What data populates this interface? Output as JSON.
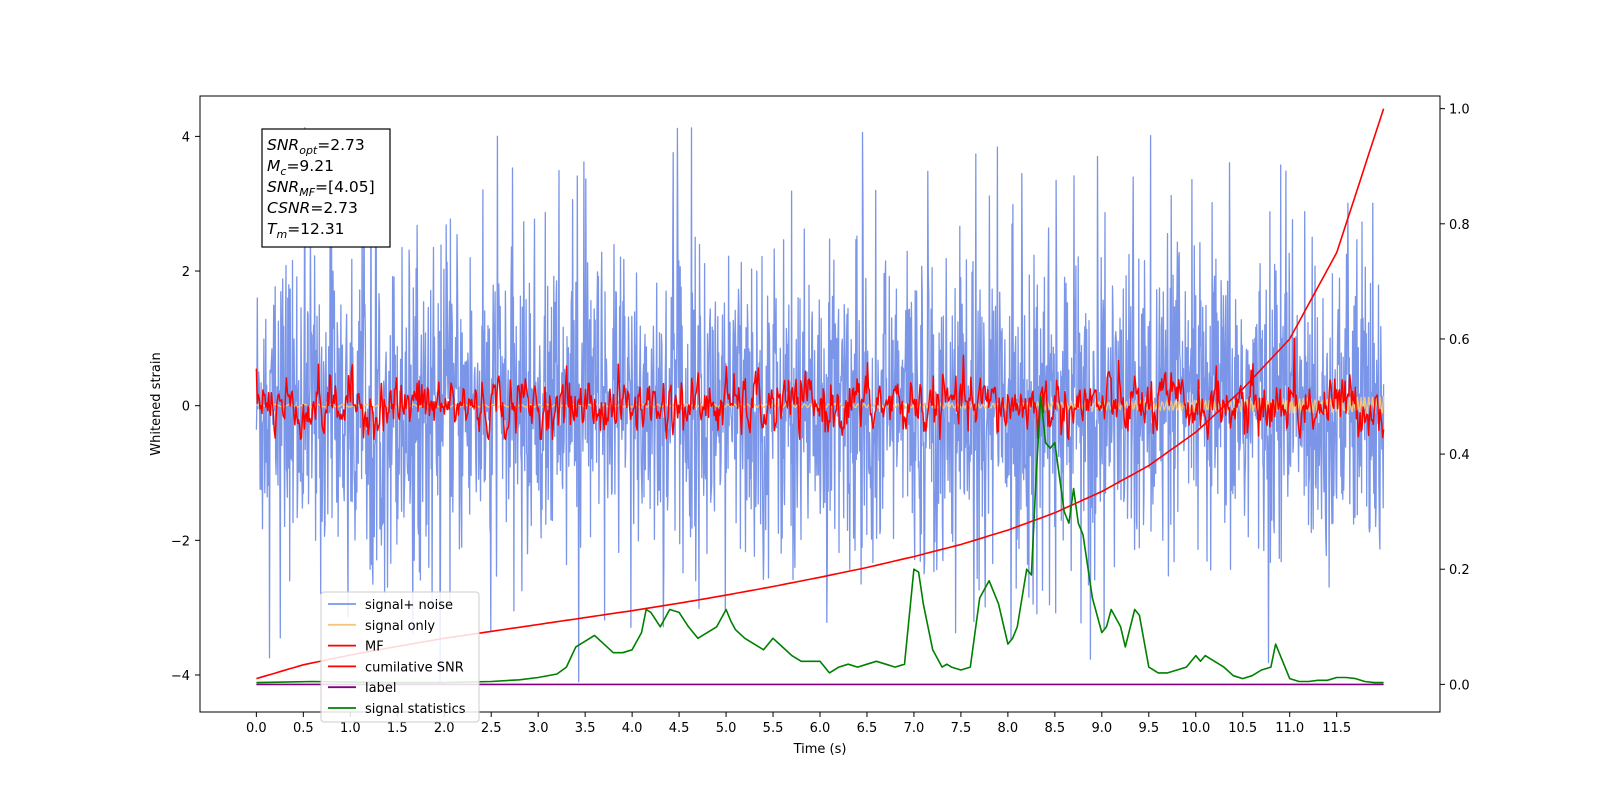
{
  "chart_data": {
    "type": "line",
    "xlabel": "Time (s)",
    "ylabel": "Whitened strain",
    "xlim": [
      -0.6,
      12.6
    ],
    "ylim": [
      -4.55,
      4.6
    ],
    "y2lim": [
      -0.048,
      1.022
    ],
    "xticks": [
      0.0,
      0.5,
      1.0,
      1.5,
      2.0,
      2.5,
      3.0,
      3.5,
      4.0,
      4.5,
      5.0,
      5.5,
      6.0,
      6.5,
      7.0,
      7.5,
      8.0,
      8.5,
      9.0,
      9.5,
      10.0,
      10.5,
      11.0,
      11.5
    ],
    "xtick_labels": [
      "0.0",
      "0.5",
      "1.0",
      "1.5",
      "2.0",
      "2.5",
      "3.0",
      "3.5",
      "4.0",
      "4.5",
      "5.0",
      "5.5",
      "6.0",
      "6.5",
      "7.0",
      "7.5",
      "8.0",
      "8.5",
      "9.0",
      "9.5",
      "10.0",
      "10.5",
      "11.0",
      "11.5"
    ],
    "yticks": [
      -4,
      -2,
      0,
      2,
      4
    ],
    "ytick_labels": [
      "−4",
      "−2",
      "0",
      "2",
      "4"
    ],
    "y2ticks": [
      0.0,
      0.2,
      0.4,
      0.6,
      0.8,
      1.0
    ],
    "y2tick_labels": [
      "0.0",
      "0.2",
      "0.4",
      "0.6",
      "0.8",
      "1.0"
    ],
    "time_span": [
      0.0,
      12.0
    ],
    "legend_position": "lower-left",
    "info_box": {
      "lines": [
        {
          "name": "SNR",
          "sub": "opt",
          "value": "=2.73"
        },
        {
          "name": "M",
          "sub": "c",
          "value": "=9.21"
        },
        {
          "name": "SNR",
          "sub": "MF",
          "value": "=[4.05]"
        },
        {
          "name": "CSNR",
          "sub": "",
          "value": "=2.73"
        },
        {
          "name": "T",
          "sub": "m",
          "value": "=12.31"
        }
      ]
    },
    "series": [
      {
        "name": "signal+ noise",
        "axis": "left",
        "color": "#7b96e8",
        "envelope": {
          "upper_typical": 2.2,
          "lower_typical": -2.6,
          "max": 4.15,
          "min": -4.1
        }
      },
      {
        "name": "signal only",
        "axis": "left",
        "color": "#f5c77e",
        "start_amplitude": 0.02,
        "end_amplitude": 0.15
      },
      {
        "name": "MF",
        "axis": "left",
        "color": "#ff0000",
        "envelope": {
          "upper_typical": 0.6,
          "lower_typical": -0.5,
          "max": 0.75,
          "min": -0.5
        },
        "start_value": 0.55,
        "spike": {
          "x": 11.05,
          "y": 1.0
        }
      },
      {
        "name": "cumilative SNR",
        "axis": "right",
        "color": "#ff0000",
        "x": [
          0.0,
          0.5,
          1.0,
          1.5,
          2.0,
          2.5,
          3.0,
          3.5,
          4.0,
          4.5,
          5.0,
          5.5,
          6.0,
          6.5,
          7.0,
          7.5,
          8.0,
          8.5,
          9.0,
          9.5,
          10.0,
          10.5,
          11.0,
          11.5,
          12.0
        ],
        "values": [
          0.01,
          0.034,
          0.051,
          0.066,
          0.08,
          0.092,
          0.104,
          0.116,
          0.128,
          0.141,
          0.155,
          0.17,
          0.186,
          0.203,
          0.222,
          0.243,
          0.268,
          0.298,
          0.335,
          0.38,
          0.438,
          0.513,
          0.6,
          0.75,
          1.0
        ]
      },
      {
        "name": "label",
        "axis": "right",
        "color": "#800080",
        "x": [
          0.0,
          12.0
        ],
        "values": [
          0.0,
          0.0
        ]
      },
      {
        "name": "signal statistics",
        "axis": "right",
        "color": "#008000",
        "x": [
          0.0,
          0.3,
          0.6,
          1.0,
          1.5,
          2.0,
          2.5,
          2.8,
          3.0,
          3.2,
          3.3,
          3.4,
          3.5,
          3.6,
          3.7,
          3.8,
          3.9,
          4.0,
          4.1,
          4.15,
          4.2,
          4.3,
          4.4,
          4.5,
          4.6,
          4.7,
          4.8,
          4.9,
          5.0,
          5.05,
          5.1,
          5.2,
          5.3,
          5.4,
          5.5,
          5.6,
          5.7,
          5.8,
          5.9,
          6.0,
          6.1,
          6.2,
          6.3,
          6.4,
          6.5,
          6.6,
          6.7,
          6.8,
          6.9,
          7.0,
          7.05,
          7.1,
          7.2,
          7.3,
          7.35,
          7.4,
          7.5,
          7.6,
          7.7,
          7.8,
          7.9,
          8.0,
          8.05,
          8.1,
          8.2,
          8.25,
          8.3,
          8.35,
          8.4,
          8.45,
          8.5,
          8.55,
          8.6,
          8.65,
          8.7,
          8.75,
          8.8,
          8.9,
          9.0,
          9.05,
          9.1,
          9.2,
          9.25,
          9.35,
          9.4,
          9.5,
          9.6,
          9.7,
          9.8,
          9.9,
          10.0,
          10.05,
          10.1,
          10.2,
          10.3,
          10.4,
          10.5,
          10.6,
          10.7,
          10.8,
          10.85,
          10.9,
          11.0,
          11.1,
          11.2,
          11.3,
          11.4,
          11.5,
          11.6,
          11.7,
          11.8,
          11.9,
          12.0
        ],
        "values": [
          0.003,
          0.004,
          0.005,
          0.004,
          0.003,
          0.003,
          0.005,
          0.008,
          0.012,
          0.018,
          0.03,
          0.065,
          0.075,
          0.085,
          0.07,
          0.055,
          0.055,
          0.06,
          0.09,
          0.13,
          0.125,
          0.1,
          0.13,
          0.125,
          0.1,
          0.08,
          0.09,
          0.1,
          0.13,
          0.11,
          0.095,
          0.08,
          0.07,
          0.06,
          0.08,
          0.065,
          0.05,
          0.04,
          0.04,
          0.04,
          0.02,
          0.03,
          0.035,
          0.03,
          0.035,
          0.04,
          0.035,
          0.03,
          0.035,
          0.2,
          0.195,
          0.14,
          0.06,
          0.03,
          0.035,
          0.03,
          0.025,
          0.03,
          0.15,
          0.18,
          0.14,
          0.07,
          0.08,
          0.1,
          0.2,
          0.19,
          0.36,
          0.5,
          0.42,
          0.41,
          0.42,
          0.36,
          0.3,
          0.28,
          0.34,
          0.28,
          0.26,
          0.15,
          0.09,
          0.1,
          0.13,
          0.1,
          0.065,
          0.13,
          0.12,
          0.03,
          0.02,
          0.02,
          0.025,
          0.03,
          0.05,
          0.04,
          0.05,
          0.04,
          0.03,
          0.015,
          0.01,
          0.015,
          0.025,
          0.03,
          0.07,
          0.05,
          0.01,
          0.005,
          0.005,
          0.007,
          0.007,
          0.012,
          0.012,
          0.01,
          0.005,
          0.003,
          0.003
        ]
      }
    ]
  }
}
